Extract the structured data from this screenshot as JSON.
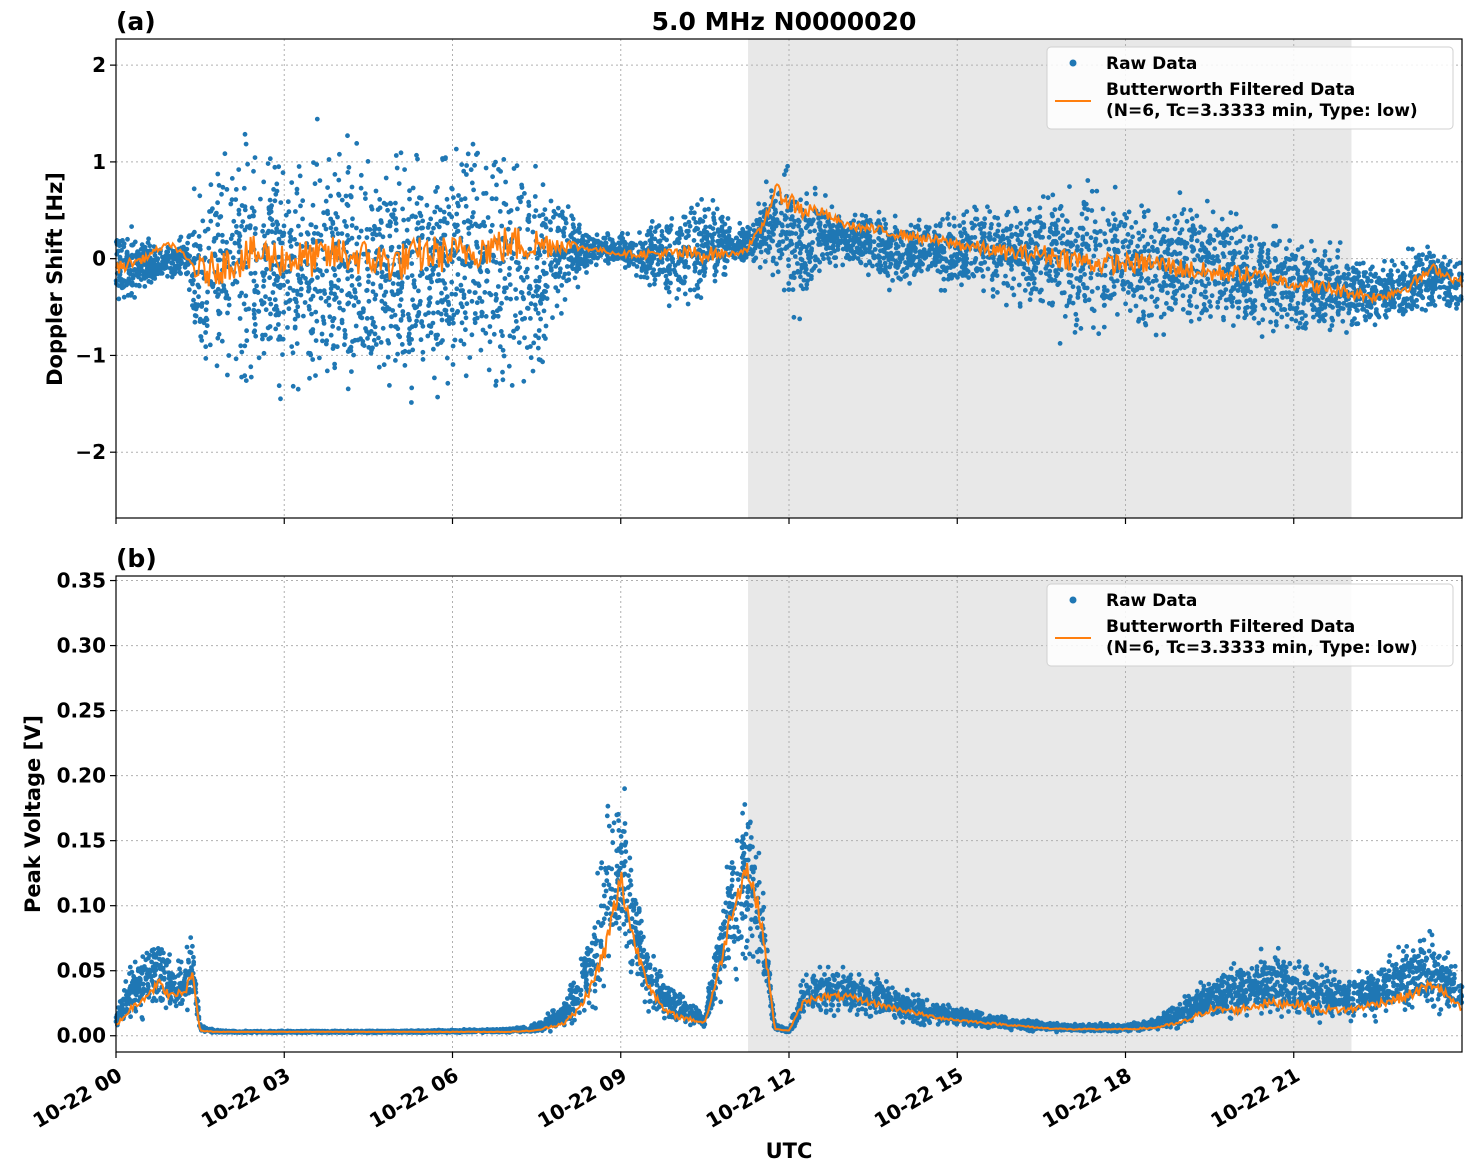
{
  "figure": {
    "title": "5.0 MHz N0000020",
    "xlabel": "UTC",
    "colors": {
      "raw": "#1f77b4",
      "filtered": "#ff7f0e",
      "shade": "#e8e8e8"
    },
    "x_ticks": [
      "10-22 00",
      "10-22 03",
      "10-22 06",
      "10-22 09",
      "10-22 12",
      "10-22 15",
      "10-22 18",
      "10-22 21"
    ],
    "shaded_span_utc_hours": [
      11.27,
      22.03
    ]
  },
  "chart_data": [
    {
      "type": "scatter",
      "panel_label": "(a)",
      "ylabel": "Doppler Shift [Hz]",
      "xlim_utc_hours": [
        0,
        24
      ],
      "ylim": [
        -2.68,
        2.27
      ],
      "y_ticks": [
        2,
        1,
        0,
        -1,
        -2
      ],
      "y_tick_labels": [
        "2",
        "1",
        "0",
        "−1",
        "−2"
      ],
      "grid": true,
      "legend_position": "top-right",
      "legend": [
        "Raw Data",
        "Butterworth Filtered Data",
        "(N=6, Tc=3.3333 min, Type: low)"
      ],
      "series": [
        {
          "name": "Raw Data",
          "kind": "scatter",
          "x_utc_hours": [
            0,
            0.25,
            0.5,
            0.75,
            1.0,
            1.25,
            1.5,
            1.75,
            2.0,
            2.5,
            3.0,
            3.5,
            4.0,
            4.5,
            5.0,
            5.5,
            6.0,
            6.5,
            7.0,
            7.5,
            8.0,
            8.25,
            8.5,
            9.0,
            9.5,
            10.0,
            10.5,
            11.0,
            11.25,
            11.5,
            11.75,
            12.0,
            12.25,
            12.5,
            13.0,
            13.5,
            14.0,
            14.5,
            15.0,
            15.5,
            16.0,
            16.5,
            17.0,
            17.5,
            18.0,
            18.5,
            19.0,
            19.5,
            20.0,
            20.5,
            21.0,
            21.5,
            22.0,
            22.5,
            23.0,
            23.5,
            24.0
          ],
          "y_min": [
            -0.7,
            -0.5,
            -0.4,
            -0.3,
            -0.3,
            -0.3,
            -1.7,
            -1.7,
            -1.6,
            -1.7,
            -1.8,
            -1.8,
            -1.8,
            -1.8,
            -1.9,
            -1.8,
            -1.7,
            -1.7,
            -1.8,
            -1.7,
            -0.6,
            -0.3,
            -0.1,
            -0.1,
            -0.4,
            -0.6,
            -0.6,
            -0.1,
            -0.1,
            -0.2,
            -0.3,
            -0.7,
            -0.9,
            -0.2,
            -0.1,
            -0.3,
            -0.4,
            -0.3,
            -0.5,
            -0.5,
            -0.6,
            -0.8,
            -1.0,
            -1.0,
            -0.9,
            -1.0,
            -0.9,
            -0.9,
            -0.9,
            -0.9,
            -0.9,
            -0.9,
            -0.9,
            -0.8,
            -0.8,
            -0.6,
            -0.7
          ],
          "y_max": [
            0.5,
            0.4,
            0.3,
            0.2,
            0.2,
            0.3,
            1.2,
            1.4,
            1.5,
            1.6,
            1.5,
            1.5,
            1.5,
            1.5,
            1.5,
            1.5,
            1.5,
            1.5,
            1.6,
            1.4,
            0.8,
            0.4,
            0.3,
            0.3,
            0.5,
            0.6,
            0.9,
            0.4,
            0.4,
            0.7,
            1.0,
            1.1,
            0.9,
            0.8,
            0.5,
            0.6,
            0.5,
            0.5,
            0.6,
            0.7,
            0.8,
            0.9,
            1.0,
            0.9,
            0.8,
            0.9,
            0.9,
            0.8,
            0.6,
            0.5,
            0.4,
            0.3,
            0.2,
            0.1,
            0.2,
            0.2,
            0.1
          ]
        },
        {
          "name": "Butterworth Filtered Data",
          "kind": "line",
          "x_utc_hours": [
            0,
            0.25,
            0.5,
            0.75,
            1.0,
            1.25,
            1.5,
            1.75,
            2.0,
            2.5,
            3.0,
            3.5,
            4.0,
            4.5,
            5.0,
            5.5,
            6.0,
            6.5,
            7.0,
            7.5,
            8.0,
            8.25,
            8.5,
            9.0,
            9.5,
            10.0,
            10.5,
            11.0,
            11.25,
            11.5,
            11.75,
            12.0,
            12.25,
            12.5,
            13.0,
            13.5,
            14.0,
            14.5,
            15.0,
            15.5,
            16.0,
            16.5,
            17.0,
            17.5,
            18.0,
            18.5,
            19.0,
            19.5,
            20.0,
            20.5,
            21.0,
            21.5,
            22.0,
            22.5,
            23.0,
            23.5,
            24.0
          ],
          "y": [
            -0.1,
            -0.05,
            0.0,
            0.1,
            0.15,
            0.0,
            -0.15,
            -0.1,
            -0.05,
            0.05,
            0.0,
            0.0,
            0.05,
            0.0,
            -0.05,
            0.05,
            0.05,
            0.1,
            0.15,
            0.15,
            0.15,
            0.12,
            0.1,
            0.05,
            0.05,
            0.05,
            0.05,
            0.05,
            0.1,
            0.3,
            0.7,
            0.6,
            0.5,
            0.5,
            0.35,
            0.3,
            0.25,
            0.2,
            0.15,
            0.1,
            0.05,
            0.05,
            0.0,
            -0.05,
            -0.05,
            -0.05,
            -0.1,
            -0.15,
            -0.15,
            -0.2,
            -0.25,
            -0.3,
            -0.35,
            -0.4,
            -0.3,
            -0.1,
            -0.25
          ]
        }
      ]
    },
    {
      "type": "scatter",
      "panel_label": "(b)",
      "ylabel": "Peak Voltage [V]",
      "xlim_utc_hours": [
        0,
        24
      ],
      "ylim": [
        -0.0125,
        0.3535
      ],
      "y_ticks": [
        0.35,
        0.3,
        0.25,
        0.2,
        0.15,
        0.1,
        0.05,
        0.0
      ],
      "y_tick_labels": [
        "0.35",
        "0.30",
        "0.25",
        "0.20",
        "0.15",
        "0.10",
        "0.05",
        "0.00"
      ],
      "grid": true,
      "legend_position": "top-right",
      "legend": [
        "Raw Data",
        "Butterworth Filtered Data",
        "(N=6, Tc=3.3333 min, Type: low)"
      ],
      "series": [
        {
          "name": "Raw Data",
          "kind": "scatter",
          "x_utc_hours": [
            0,
            0.25,
            0.5,
            0.75,
            1.0,
            1.25,
            1.35,
            1.5,
            1.75,
            2.0,
            3.0,
            4.0,
            5.0,
            6.0,
            7.0,
            7.5,
            8.0,
            8.25,
            8.5,
            8.75,
            9.0,
            9.25,
            9.5,
            9.75,
            10.0,
            10.5,
            10.75,
            11.0,
            11.25,
            11.5,
            11.75,
            12.0,
            12.25,
            12.5,
            13.0,
            13.5,
            14.0,
            14.5,
            15.0,
            15.5,
            16.0,
            16.5,
            17.0,
            17.5,
            18.0,
            18.5,
            19.0,
            19.5,
            20.0,
            20.5,
            21.0,
            21.5,
            22.0,
            22.5,
            23.0,
            23.5,
            24.0
          ],
          "y_min": [
            0.005,
            0.008,
            0.01,
            0.01,
            0.01,
            0.01,
            0.02,
            0.003,
            0.002,
            0.002,
            0.002,
            0.002,
            0.002,
            0.002,
            0.002,
            0.002,
            0.004,
            0.008,
            0.015,
            0.025,
            0.03,
            0.02,
            0.01,
            0.008,
            0.006,
            0.004,
            0.02,
            0.03,
            0.04,
            0.03,
            0.004,
            0.002,
            0.008,
            0.01,
            0.01,
            0.01,
            0.008,
            0.006,
            0.005,
            0.004,
            0.003,
            0.003,
            0.002,
            0.002,
            0.002,
            0.003,
            0.004,
            0.006,
            0.008,
            0.01,
            0.008,
            0.006,
            0.006,
            0.008,
            0.01,
            0.012,
            0.012
          ],
          "y_max": [
            0.02,
            0.06,
            0.07,
            0.09,
            0.06,
            0.07,
            0.09,
            0.01,
            0.005,
            0.004,
            0.004,
            0.004,
            0.004,
            0.005,
            0.006,
            0.01,
            0.03,
            0.06,
            0.1,
            0.2,
            0.23,
            0.14,
            0.08,
            0.05,
            0.04,
            0.02,
            0.1,
            0.18,
            0.21,
            0.15,
            0.01,
            0.005,
            0.05,
            0.06,
            0.06,
            0.05,
            0.04,
            0.03,
            0.025,
            0.018,
            0.015,
            0.012,
            0.01,
            0.01,
            0.01,
            0.015,
            0.03,
            0.05,
            0.06,
            0.07,
            0.07,
            0.06,
            0.05,
            0.06,
            0.08,
            0.09,
            0.05
          ]
        },
        {
          "name": "Butterworth Filtered Data",
          "kind": "line",
          "x_utc_hours": [
            0,
            0.25,
            0.5,
            0.75,
            1.0,
            1.25,
            1.35,
            1.5,
            1.75,
            2.0,
            3.0,
            4.0,
            5.0,
            6.0,
            7.0,
            7.5,
            8.0,
            8.25,
            8.5,
            8.75,
            9.0,
            9.25,
            9.5,
            9.75,
            10.0,
            10.5,
            10.75,
            11.0,
            11.25,
            11.5,
            11.75,
            12.0,
            12.25,
            12.5,
            13.0,
            13.5,
            14.0,
            14.5,
            15.0,
            15.5,
            16.0,
            16.5,
            17.0,
            17.5,
            18.0,
            18.5,
            19.0,
            19.5,
            20.0,
            20.5,
            21.0,
            21.5,
            22.0,
            22.5,
            23.0,
            23.5,
            24.0
          ],
          "y": [
            0.008,
            0.02,
            0.03,
            0.04,
            0.03,
            0.035,
            0.05,
            0.004,
            0.003,
            0.003,
            0.003,
            0.003,
            0.003,
            0.003,
            0.003,
            0.004,
            0.01,
            0.02,
            0.04,
            0.07,
            0.12,
            0.07,
            0.04,
            0.02,
            0.015,
            0.01,
            0.05,
            0.1,
            0.13,
            0.09,
            0.005,
            0.004,
            0.025,
            0.03,
            0.03,
            0.025,
            0.02,
            0.015,
            0.012,
            0.01,
            0.008,
            0.006,
            0.005,
            0.005,
            0.005,
            0.006,
            0.01,
            0.02,
            0.02,
            0.025,
            0.025,
            0.02,
            0.02,
            0.025,
            0.03,
            0.04,
            0.02
          ]
        }
      ]
    }
  ]
}
